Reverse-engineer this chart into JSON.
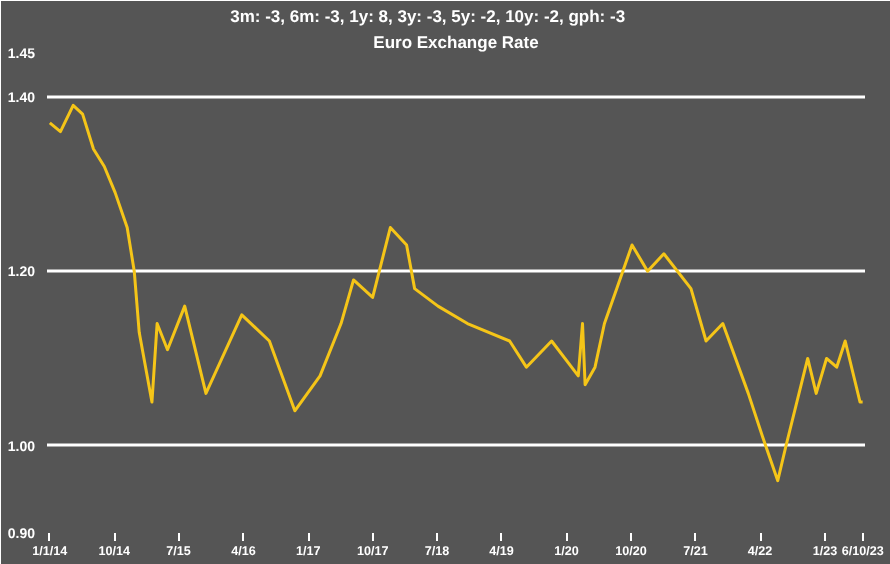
{
  "chart_data": {
    "type": "line",
    "title": "Euro Exchange Rate",
    "subtitle": "3m: -3,   6m: -3,   1y: 8,   3y: -3,   5y: -2,   10y: -2,   gph: -3",
    "x": [
      "2014-01-01",
      "2014-02-15",
      "2014-04-10",
      "2014-05-20",
      "2014-07-05",
      "2014-08-20",
      "2014-10-05",
      "2014-11-25",
      "2014-12-25",
      "2015-01-15",
      "2015-03-10",
      "2015-04-01",
      "2015-05-15",
      "2015-07-27",
      "2015-10-25",
      "2016-03-25",
      "2016-07-20",
      "2016-11-05",
      "2017-02-20",
      "2017-05-20",
      "2017-07-12",
      "2017-10-01",
      "2017-12-15",
      "2018-02-22",
      "2018-03-28",
      "2018-07-05",
      "2018-11-07",
      "2019-05-05",
      "2019-07-15",
      "2019-10-30",
      "2020-02-20",
      "2020-03-09",
      "2020-03-20",
      "2020-05-01",
      "2020-06-10",
      "2020-08-01",
      "2020-10-05",
      "2020-12-10",
      "2021-02-17",
      "2021-06-12",
      "2021-08-15",
      "2021-10-25",
      "2022-02-10",
      "2022-04-12",
      "2022-06-15",
      "2022-07-20",
      "2022-10-20",
      "2022-11-25",
      "2023-01-08",
      "2023-02-20",
      "2023-03-28",
      "2023-05-30",
      "2023-06-10"
    ],
    "series": [
      {
        "color": "#f5c518",
        "values": [
          1.37,
          1.36,
          1.39,
          1.38,
          1.34,
          1.32,
          1.29,
          1.25,
          1.2,
          1.13,
          1.05,
          1.14,
          1.11,
          1.16,
          1.06,
          1.15,
          1.12,
          1.04,
          1.08,
          1.14,
          1.19,
          1.17,
          1.25,
          1.23,
          1.18,
          1.16,
          1.14,
          1.12,
          1.09,
          1.12,
          1.08,
          1.14,
          1.07,
          1.09,
          1.14,
          1.18,
          1.23,
          1.2,
          1.22,
          1.18,
          1.12,
          1.14,
          1.06,
          1.01,
          0.96,
          1.0,
          1.1,
          1.06,
          1.1,
          1.09,
          1.12,
          1.05,
          1.05
        ]
      }
    ],
    "xlim": [
      "2013-12-20",
      "2023-06-20"
    ],
    "xticks": [
      {
        "value": "2014-01-01",
        "label": "1/1/14"
      },
      {
        "value": "2014-10-01",
        "label": "10/14"
      },
      {
        "value": "2015-07-01",
        "label": "7/15"
      },
      {
        "value": "2016-04-01",
        "label": "4/16"
      },
      {
        "value": "2017-01-01",
        "label": "1/17"
      },
      {
        "value": "2017-10-01",
        "label": "10/17"
      },
      {
        "value": "2018-07-01",
        "label": "7/18"
      },
      {
        "value": "2019-04-01",
        "label": "4/19"
      },
      {
        "value": "2020-01-01",
        "label": "1/20"
      },
      {
        "value": "2020-10-01",
        "label": "10/20"
      },
      {
        "value": "2021-07-01",
        "label": "7/21"
      },
      {
        "value": "2022-04-01",
        "label": "4/22"
      },
      {
        "value": "2023-01-01",
        "label": "1/23"
      },
      {
        "value": "2023-06-10",
        "label": "6/10/23"
      }
    ],
    "ylim": [
      0.9,
      1.45
    ],
    "yticks": [
      {
        "value": 0.9,
        "label": "0.90"
      },
      {
        "value": 1.0,
        "label": "1.00"
      },
      {
        "value": 1.2,
        "label": "1.20"
      },
      {
        "value": 1.4,
        "label": "1.40"
      },
      {
        "value": 1.45,
        "label": "1.45"
      }
    ],
    "grid": "y",
    "marker": "none",
    "line_style": "solid"
  }
}
